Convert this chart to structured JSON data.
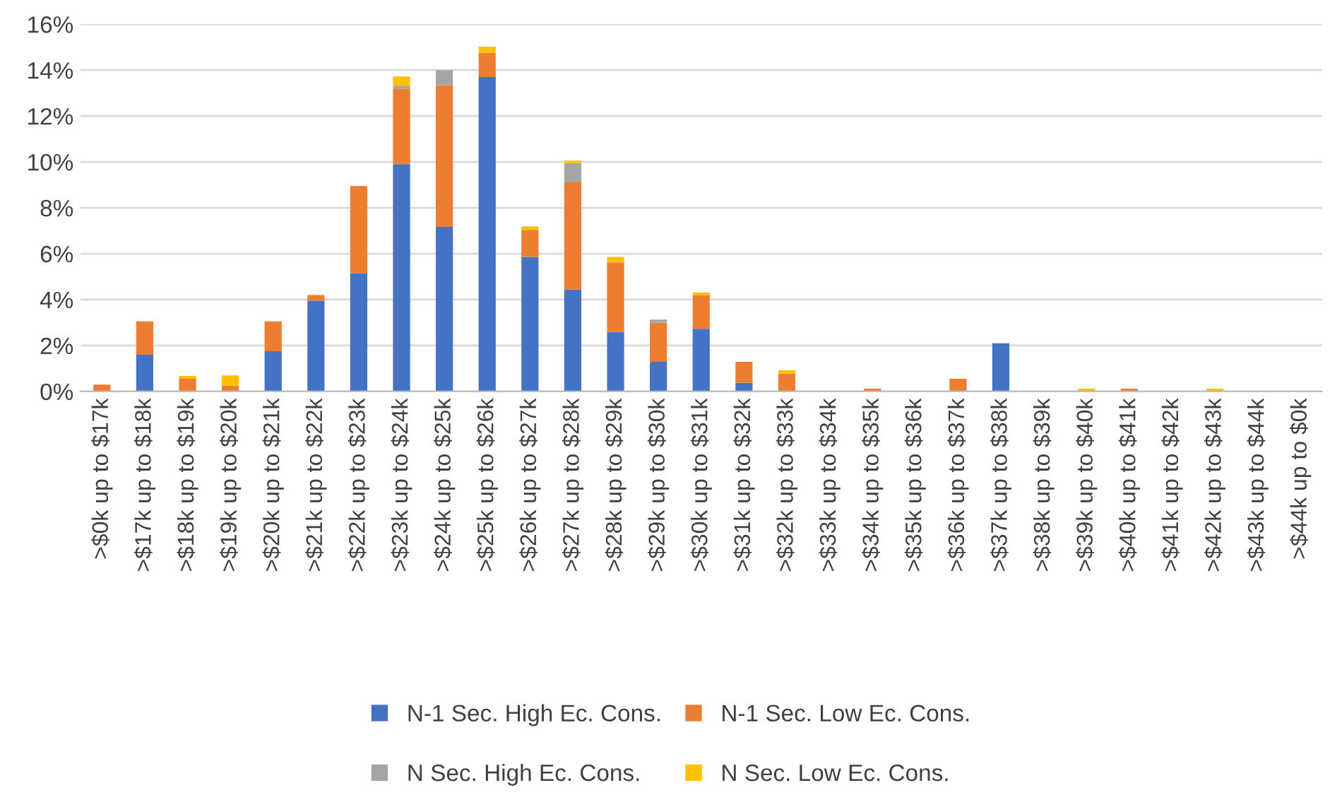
{
  "chart_data": {
    "type": "bar",
    "stacked": true,
    "categories": [
      ">$0k up to $17k",
      ">$17k up to $18k",
      ">$18k up to $19k",
      ">$19k up to $20k",
      ">$20k up to $21k",
      ">$21k up to $22k",
      ">$22k up to $23k",
      ">$23k up to $24k",
      ">$24k up to $25k",
      ">$25k up to $26k",
      ">$26k up to $27k",
      ">$27k up to $28k",
      ">$28k up to $29k",
      ">$29k up to $30k",
      ">$30k up to $31k",
      ">$31k up to $32k",
      ">$32k up to $33k",
      ">$33k up to $34k",
      ">$34k up to $35k",
      ">$35k up to $36k",
      ">$36k up to $37k",
      ">$37k up to $38k",
      ">$38k up to $39k",
      ">$39k up to $40k",
      ">$40k up to $41k",
      ">$41k up to $42k",
      ">$42k up to $43k",
      ">$43k up to $44k",
      ">$44k up to $0k"
    ],
    "series": [
      {
        "name": "N-1 Sec. High Ec. Cons.",
        "color": "#4472c4",
        "values": [
          0,
          1.6,
          0,
          0,
          1.75,
          3.95,
          5.15,
          9.9,
          7.17,
          13.7,
          5.86,
          4.44,
          2.6,
          1.29,
          2.73,
          0.37,
          0,
          0,
          0,
          0,
          0,
          2.1,
          0,
          0,
          0,
          0,
          0,
          0,
          0
        ]
      },
      {
        "name": "N-1 Sec. Low Ec. Cons.",
        "color": "#ed7d31",
        "values": [
          0.3,
          1.45,
          0.55,
          0.25,
          1.3,
          0.25,
          3.8,
          3.3,
          6.17,
          1.05,
          1.18,
          4.67,
          3.02,
          1.71,
          1.47,
          0.92,
          0.77,
          0,
          0.12,
          0,
          0.55,
          0,
          0,
          0,
          0.12,
          0,
          0,
          0,
          0
        ]
      },
      {
        "name": "N Sec. High Ec. Cons.",
        "color": "#a5a5a5",
        "values": [
          0,
          0,
          0,
          0,
          0,
          0,
          0,
          0.12,
          0.66,
          0,
          0,
          0.84,
          0,
          0.13,
          0,
          0,
          0,
          0,
          0,
          0,
          0,
          0,
          0,
          0,
          0,
          0,
          0,
          0,
          0
        ]
      },
      {
        "name": "N Sec. Low Ec. Cons.",
        "color": "#ffc000",
        "values": [
          0,
          0,
          0.12,
          0.45,
          0,
          0,
          0,
          0.4,
          0,
          0.27,
          0.15,
          0.11,
          0.24,
          0,
          0.11,
          0,
          0.15,
          0,
          0,
          0,
          0,
          0,
          0,
          0.12,
          0,
          0,
          0.12,
          0,
          0
        ]
      }
    ],
    "ylim": [
      0,
      16
    ],
    "yticks": [
      {
        "value": 0,
        "label": "0%"
      },
      {
        "value": 2,
        "label": "2%"
      },
      {
        "value": 4,
        "label": "4%"
      },
      {
        "value": 6,
        "label": "6%"
      },
      {
        "value": 8,
        "label": "8%"
      },
      {
        "value": 10,
        "label": "10%"
      },
      {
        "value": 12,
        "label": "12%"
      },
      {
        "value": 14,
        "label": "14%"
      },
      {
        "value": 16,
        "label": "16%"
      }
    ],
    "grid": "y",
    "legend": "bottom"
  }
}
